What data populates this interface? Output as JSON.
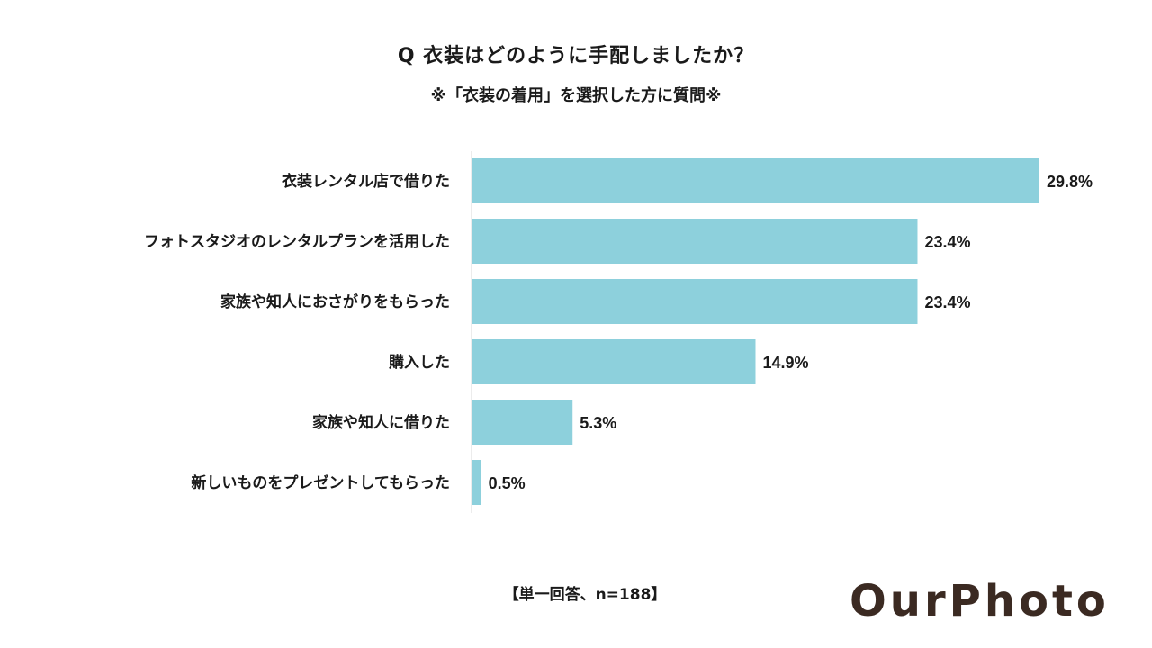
{
  "title": "Q 衣装はどのように手配しましたか？",
  "subtitle": "※「衣装の着用」を選択した方に質問※",
  "footnote": "【単一回答、n=188】",
  "logo": "OurPhoto",
  "colors": {
    "bar": "#8dd0dc",
    "axis": "#d9d9d9",
    "text": "#1a1a1a",
    "logo": "#3b2a22"
  },
  "chart_data": {
    "type": "bar",
    "orientation": "horizontal",
    "title": "Q 衣装はどのように手配しましたか？",
    "subtitle": "※「衣装の着用」を選択した方に質問※",
    "categories": [
      "衣装レンタル店で借りた",
      "フォトスタジオのレンタルプランを活用した",
      "家族や知人におさがりをもらった",
      "購入した",
      "家族や知人に借りた",
      "新しいものをプレゼントしてもらった"
    ],
    "values": [
      29.8,
      23.4,
      23.4,
      14.9,
      5.3,
      0.5
    ],
    "value_labels": [
      "29.8%",
      "23.4%",
      "23.4%",
      "14.9%",
      "5.3%",
      "0.5%"
    ],
    "unit": "%",
    "xlim": [
      0,
      30
    ],
    "grid": false,
    "legend": "none"
  }
}
